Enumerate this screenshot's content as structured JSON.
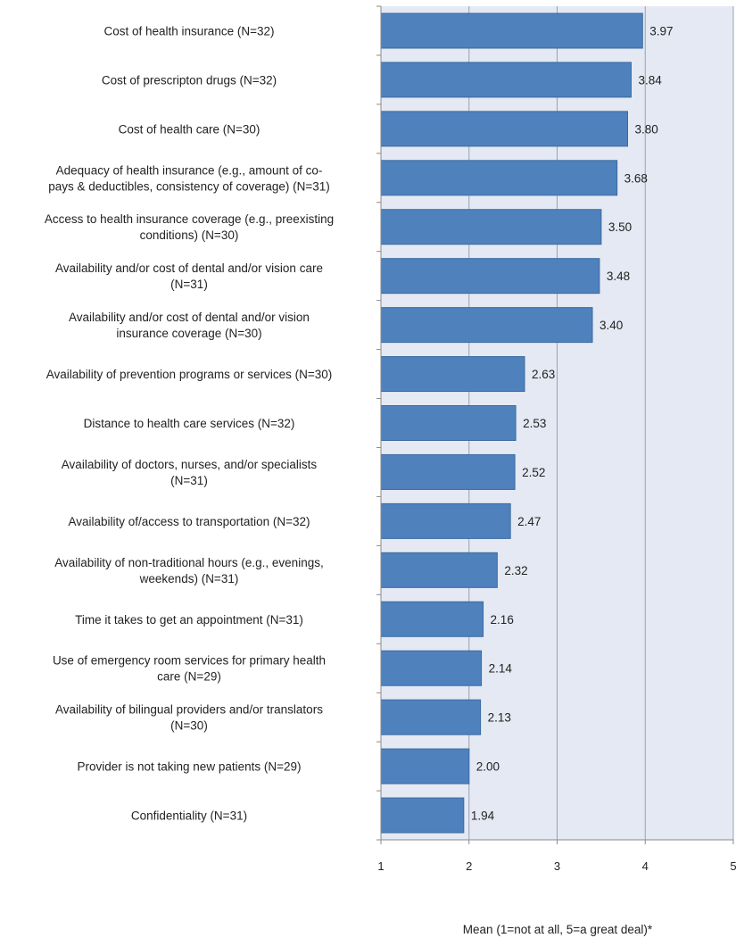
{
  "chart_data": {
    "type": "bar",
    "orientation": "horizontal",
    "categories": [
      [
        "Cost of health insurance (N=32)"
      ],
      [
        "Cost of prescripton drugs (N=32)"
      ],
      [
        "Cost of health care (N=30)"
      ],
      [
        "Adequacy of health insurance (e.g., amount of co-",
        "pays & deductibles, consistency of coverage) (N=31)"
      ],
      [
        "Access to health insurance coverage (e.g., preexisting",
        "conditions) (N=30)"
      ],
      [
        "Availability and/or cost of dental and/or vision care",
        "(N=31)"
      ],
      [
        "Availability and/or cost of dental and/or vision",
        "insurance coverage (N=30)"
      ],
      [
        "Availability of prevention programs or services (N=30)"
      ],
      [
        "Distance to health care services (N=32)"
      ],
      [
        "Availability of doctors, nurses, and/or specialists",
        "(N=31)"
      ],
      [
        "Availability of/access to transportation (N=32)"
      ],
      [
        "Availability of non-traditional hours (e.g., evenings,",
        "weekends) (N=31)"
      ],
      [
        "Time it takes to get an appointment (N=31)"
      ],
      [
        "Use of emergency room services for primary health",
        "care (N=29)"
      ],
      [
        "Availability of bilingual providers and/or translators",
        "(N=30)"
      ],
      [
        "Provider is not taking new patients (N=29)"
      ],
      [
        "Confidentiality (N=31)"
      ]
    ],
    "values": [
      3.97,
      3.84,
      3.8,
      3.68,
      3.5,
      3.48,
      3.4,
      2.63,
      2.53,
      2.52,
      2.47,
      2.32,
      2.16,
      2.14,
      2.13,
      2.0,
      1.94
    ],
    "value_labels": [
      "3.97",
      "3.84",
      "3.80",
      "3.68",
      "3.50",
      "3.48",
      "3.40",
      "2.63",
      "2.53",
      "2.52",
      "2.47",
      "2.32",
      "2.16",
      "2.14",
      "2.13",
      "2.00",
      "1.94"
    ],
    "xlim": [
      1,
      5
    ],
    "xticks": [
      "1",
      "2",
      "3",
      "4",
      "5"
    ],
    "xlabel": "Mean (1=not at all, 5=a great deal)*",
    "title": "",
    "ylabel": "",
    "grid": "vertical",
    "colors": {
      "bar": "#4f81bd",
      "bar_edge": "#3b6aa0",
      "plot_background": "#e4e9f3",
      "gridline": "#9aa3b0",
      "axis": "#8a8a8a"
    }
  }
}
